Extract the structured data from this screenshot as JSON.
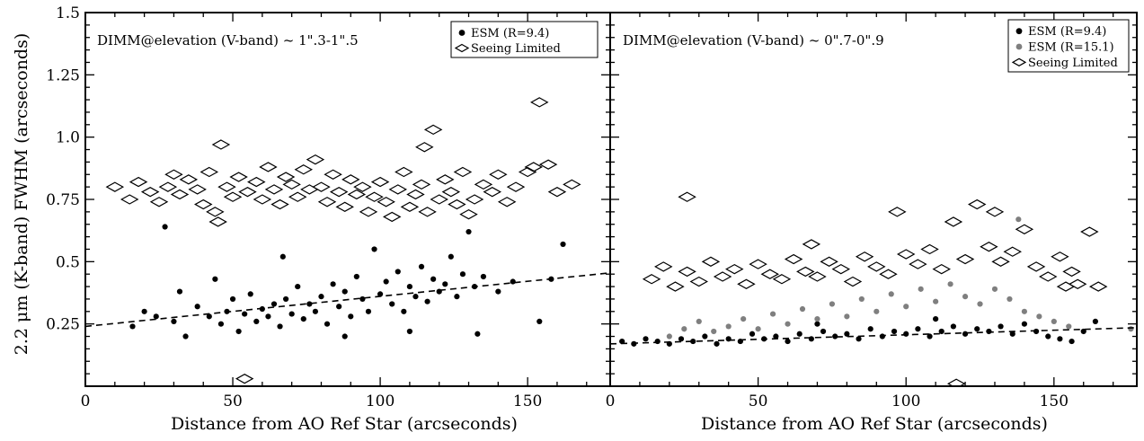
{
  "figure": {
    "ylabel": "2.2 μm (K-band) FWHM (arcseconds)",
    "xlabel": "Distance from AO Ref Star (arcseconds)"
  },
  "chart_data": [
    {
      "type": "scatter",
      "annotation": "DIMM@elevation (V-band) ~ 1\".3-1\".5",
      "xlim": [
        0,
        178
      ],
      "ylim": [
        0,
        1.5
      ],
      "x_ticks": [
        "0",
        "50",
        "100",
        "150"
      ],
      "y_ticks": [
        "0.25",
        "0.5",
        "0.75",
        "1.0",
        "1.25",
        "1.5"
      ],
      "grid": false,
      "legend_position": "top-right",
      "legend": [
        {
          "label": "ESM (R=9.4)",
          "marker": "filled-circle",
          "color": "#000000"
        },
        {
          "label": "Seeing Limited",
          "marker": "open-diamond",
          "color": "#000000"
        }
      ],
      "fit_line": {
        "style": "dashed",
        "points": [
          [
            0,
            0.24
          ],
          [
            178,
            0.455
          ]
        ]
      },
      "series": [
        {
          "name": "ESM (R=9.4)",
          "marker": "filled-circle",
          "color": "#000000",
          "points": [
            [
              27,
              0.64
            ],
            [
              16,
              0.24
            ],
            [
              20,
              0.3
            ],
            [
              24,
              0.28
            ],
            [
              30,
              0.26
            ],
            [
              32,
              0.38
            ],
            [
              34,
              0.2
            ],
            [
              38,
              0.32
            ],
            [
              42,
              0.28
            ],
            [
              44,
              0.43
            ],
            [
              46,
              0.25
            ],
            [
              48,
              0.3
            ],
            [
              50,
              0.35
            ],
            [
              52,
              0.22
            ],
            [
              54,
              0.29
            ],
            [
              56,
              0.37
            ],
            [
              58,
              0.26
            ],
            [
              60,
              0.31
            ],
            [
              62,
              0.28
            ],
            [
              64,
              0.33
            ],
            [
              66,
              0.24
            ],
            [
              67,
              0.52
            ],
            [
              68,
              0.35
            ],
            [
              70,
              0.29
            ],
            [
              72,
              0.4
            ],
            [
              74,
              0.27
            ],
            [
              76,
              0.33
            ],
            [
              78,
              0.3
            ],
            [
              80,
              0.36
            ],
            [
              82,
              0.25
            ],
            [
              84,
              0.41
            ],
            [
              86,
              0.32
            ],
            [
              88,
              0.38
            ],
            [
              90,
              0.28
            ],
            [
              92,
              0.44
            ],
            [
              94,
              0.35
            ],
            [
              96,
              0.3
            ],
            [
              98,
              0.55
            ],
            [
              100,
              0.37
            ],
            [
              102,
              0.42
            ],
            [
              104,
              0.33
            ],
            [
              106,
              0.46
            ],
            [
              108,
              0.3
            ],
            [
              110,
              0.4
            ],
            [
              112,
              0.36
            ],
            [
              114,
              0.48
            ],
            [
              116,
              0.34
            ],
            [
              118,
              0.43
            ],
            [
              120,
              0.38
            ],
            [
              122,
              0.41
            ],
            [
              124,
              0.52
            ],
            [
              126,
              0.36
            ],
            [
              128,
              0.45
            ],
            [
              130,
              0.62
            ],
            [
              132,
              0.4
            ],
            [
              135,
              0.44
            ],
            [
              140,
              0.38
            ],
            [
              145,
              0.42
            ],
            [
              154,
              0.26
            ],
            [
              158,
              0.43
            ],
            [
              162,
              0.57
            ],
            [
              133,
              0.21
            ],
            [
              110,
              0.22
            ],
            [
              88,
              0.2
            ]
          ]
        },
        {
          "name": "Seeing Limited",
          "marker": "open-diamond",
          "color": "#000000",
          "points": [
            [
              10,
              0.8
            ],
            [
              15,
              0.75
            ],
            [
              18,
              0.82
            ],
            [
              22,
              0.78
            ],
            [
              25,
              0.74
            ],
            [
              28,
              0.8
            ],
            [
              30,
              0.85
            ],
            [
              32,
              0.77
            ],
            [
              35,
              0.83
            ],
            [
              38,
              0.79
            ],
            [
              40,
              0.73
            ],
            [
              42,
              0.86
            ],
            [
              44,
              0.7
            ],
            [
              45,
              0.66
            ],
            [
              46,
              0.97
            ],
            [
              48,
              0.8
            ],
            [
              50,
              0.76
            ],
            [
              52,
              0.84
            ],
            [
              55,
              0.78
            ],
            [
              58,
              0.82
            ],
            [
              60,
              0.75
            ],
            [
              62,
              0.88
            ],
            [
              64,
              0.79
            ],
            [
              66,
              0.73
            ],
            [
              68,
              0.84
            ],
            [
              70,
              0.81
            ],
            [
              72,
              0.76
            ],
            [
              74,
              0.87
            ],
            [
              76,
              0.79
            ],
            [
              78,
              0.91
            ],
            [
              80,
              0.8
            ],
            [
              82,
              0.74
            ],
            [
              84,
              0.85
            ],
            [
              86,
              0.78
            ],
            [
              88,
              0.72
            ],
            [
              90,
              0.83
            ],
            [
              92,
              0.77
            ],
            [
              94,
              0.8
            ],
            [
              96,
              0.7
            ],
            [
              98,
              0.76
            ],
            [
              100,
              0.82
            ],
            [
              102,
              0.74
            ],
            [
              104,
              0.68
            ],
            [
              106,
              0.79
            ],
            [
              108,
              0.86
            ],
            [
              110,
              0.72
            ],
            [
              112,
              0.77
            ],
            [
              114,
              0.81
            ],
            [
              115,
              0.96
            ],
            [
              116,
              0.7
            ],
            [
              118,
              1.03
            ],
            [
              120,
              0.75
            ],
            [
              122,
              0.83
            ],
            [
              124,
              0.78
            ],
            [
              126,
              0.73
            ],
            [
              128,
              0.86
            ],
            [
              130,
              0.69
            ],
            [
              132,
              0.75
            ],
            [
              135,
              0.81
            ],
            [
              138,
              0.78
            ],
            [
              140,
              0.85
            ],
            [
              143,
              0.74
            ],
            [
              146,
              0.8
            ],
            [
              150,
              0.86
            ],
            [
              152,
              0.88
            ],
            [
              154,
              1.14
            ],
            [
              157,
              0.89
            ],
            [
              160,
              0.78
            ],
            [
              165,
              0.81
            ],
            [
              54,
              0.03
            ]
          ]
        }
      ]
    },
    {
      "type": "scatter",
      "annotation": "DIMM@elevation (V-band) ~ 0\".7-0\".9",
      "xlim": [
        0,
        178
      ],
      "ylim": [
        0,
        1.5
      ],
      "x_ticks": [
        "0",
        "50",
        "100",
        "150"
      ],
      "grid": false,
      "legend_position": "top-right",
      "legend": [
        {
          "label": "ESM (R=9.4)",
          "marker": "filled-circle",
          "color": "#000000"
        },
        {
          "label": "ESM (R=15.1)",
          "marker": "filled-circle",
          "color": "#7f7f7f"
        },
        {
          "label": "Seeing Limited",
          "marker": "open-diamond",
          "color": "#000000"
        }
      ],
      "fit_line": {
        "style": "dashed",
        "points": [
          [
            0,
            0.17
          ],
          [
            178,
            0.235
          ]
        ]
      },
      "series": [
        {
          "name": "ESM (R=9.4)",
          "marker": "filled-circle",
          "color": "#000000",
          "points": [
            [
              4,
              0.18
            ],
            [
              8,
              0.17
            ],
            [
              12,
              0.19
            ],
            [
              16,
              0.18
            ],
            [
              20,
              0.17
            ],
            [
              24,
              0.19
            ],
            [
              28,
              0.18
            ],
            [
              32,
              0.2
            ],
            [
              36,
              0.17
            ],
            [
              40,
              0.19
            ],
            [
              44,
              0.18
            ],
            [
              48,
              0.21
            ],
            [
              52,
              0.19
            ],
            [
              56,
              0.2
            ],
            [
              60,
              0.18
            ],
            [
              64,
              0.21
            ],
            [
              68,
              0.19
            ],
            [
              72,
              0.22
            ],
            [
              76,
              0.2
            ],
            [
              80,
              0.21
            ],
            [
              84,
              0.19
            ],
            [
              88,
              0.23
            ],
            [
              92,
              0.2
            ],
            [
              96,
              0.22
            ],
            [
              100,
              0.21
            ],
            [
              104,
              0.23
            ],
            [
              108,
              0.2
            ],
            [
              112,
              0.22
            ],
            [
              116,
              0.24
            ],
            [
              120,
              0.21
            ],
            [
              124,
              0.23
            ],
            [
              128,
              0.22
            ],
            [
              132,
              0.24
            ],
            [
              136,
              0.21
            ],
            [
              140,
              0.25
            ],
            [
              144,
              0.22
            ],
            [
              148,
              0.2
            ],
            [
              152,
              0.19
            ],
            [
              156,
              0.18
            ],
            [
              160,
              0.22
            ],
            [
              164,
              0.26
            ],
            [
              70,
              0.25
            ],
            [
              110,
              0.27
            ]
          ]
        },
        {
          "name": "ESM (R=15.1)",
          "marker": "filled-circle",
          "color": "#7f7f7f",
          "points": [
            [
              176,
              0.23
            ],
            [
              138,
              0.67
            ],
            [
              20,
              0.2
            ],
            [
              25,
              0.23
            ],
            [
              30,
              0.26
            ],
            [
              35,
              0.22
            ],
            [
              40,
              0.24
            ],
            [
              45,
              0.27
            ],
            [
              50,
              0.23
            ],
            [
              55,
              0.29
            ],
            [
              60,
              0.25
            ],
            [
              65,
              0.31
            ],
            [
              70,
              0.27
            ],
            [
              75,
              0.33
            ],
            [
              80,
              0.28
            ],
            [
              85,
              0.35
            ],
            [
              90,
              0.3
            ],
            [
              95,
              0.37
            ],
            [
              100,
              0.32
            ],
            [
              105,
              0.39
            ],
            [
              110,
              0.34
            ],
            [
              115,
              0.41
            ],
            [
              120,
              0.36
            ],
            [
              125,
              0.33
            ],
            [
              130,
              0.39
            ],
            [
              135,
              0.35
            ],
            [
              140,
              0.3
            ],
            [
              145,
              0.28
            ],
            [
              150,
              0.26
            ],
            [
              155,
              0.24
            ]
          ]
        },
        {
          "name": "Seeing Limited",
          "marker": "open-diamond",
          "color": "#000000",
          "points": [
            [
              26,
              0.76
            ],
            [
              14,
              0.43
            ],
            [
              18,
              0.48
            ],
            [
              22,
              0.4
            ],
            [
              26,
              0.46
            ],
            [
              30,
              0.42
            ],
            [
              34,
              0.5
            ],
            [
              38,
              0.44
            ],
            [
              42,
              0.47
            ],
            [
              46,
              0.41
            ],
            [
              50,
              0.49
            ],
            [
              54,
              0.45
            ],
            [
              58,
              0.43
            ],
            [
              62,
              0.51
            ],
            [
              66,
              0.46
            ],
            [
              68,
              0.57
            ],
            [
              70,
              0.44
            ],
            [
              74,
              0.5
            ],
            [
              78,
              0.47
            ],
            [
              82,
              0.42
            ],
            [
              86,
              0.52
            ],
            [
              90,
              0.48
            ],
            [
              94,
              0.45
            ],
            [
              97,
              0.7
            ],
            [
              100,
              0.53
            ],
            [
              104,
              0.49
            ],
            [
              108,
              0.55
            ],
            [
              112,
              0.47
            ],
            [
              116,
              0.66
            ],
            [
              120,
              0.51
            ],
            [
              124,
              0.73
            ],
            [
              128,
              0.56
            ],
            [
              130,
              0.7
            ],
            [
              132,
              0.5
            ],
            [
              136,
              0.54
            ],
            [
              140,
              0.63
            ],
            [
              144,
              0.48
            ],
            [
              148,
              0.44
            ],
            [
              152,
              0.52
            ],
            [
              154,
              0.4
            ],
            [
              156,
              0.46
            ],
            [
              158,
              0.41
            ],
            [
              162,
              0.62
            ],
            [
              165,
              0.4
            ],
            [
              117,
              0.01
            ]
          ]
        }
      ]
    }
  ]
}
